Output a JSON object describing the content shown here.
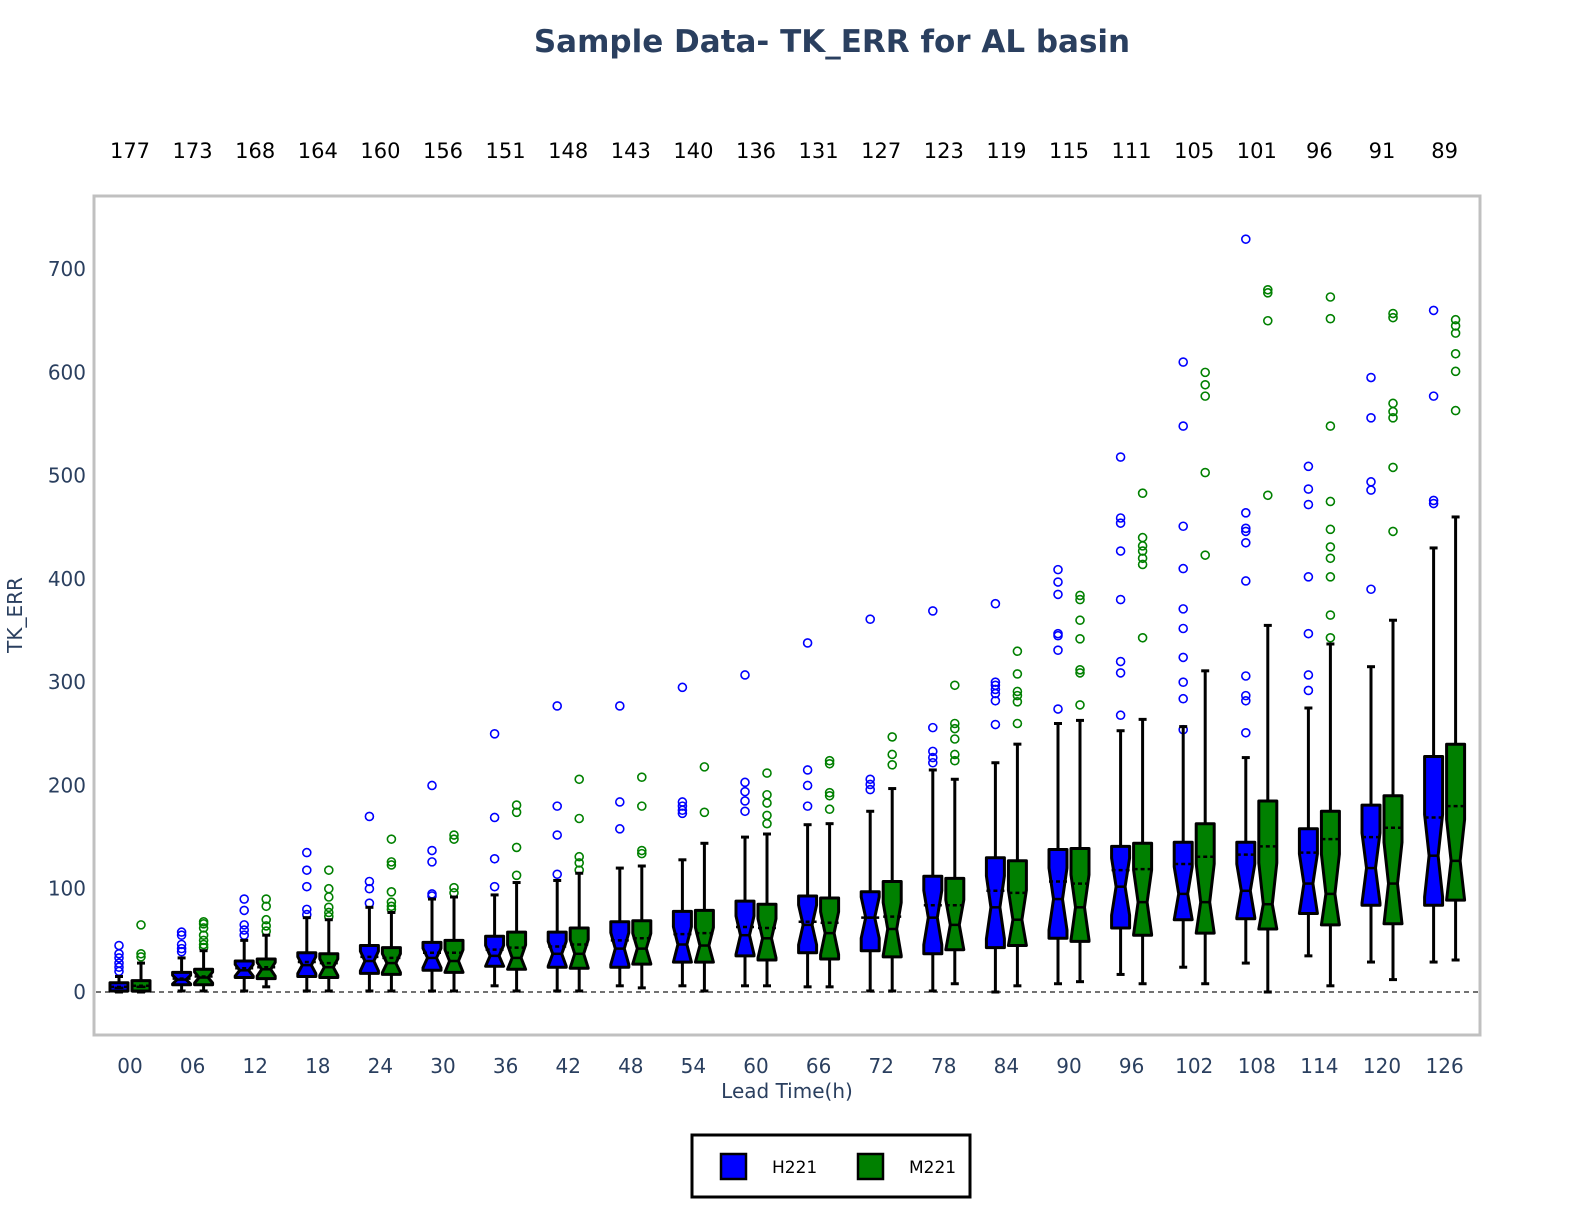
{
  "chart_data": {
    "type": "box",
    "title": "Sample Data- TK_ERR for AL basin",
    "xlabel": "Lead Time(h)",
    "ylabel": "TK_ERR",
    "ylim": [
      -40,
      750
    ],
    "yticks": [
      0,
      100,
      200,
      300,
      400,
      500,
      600,
      700
    ],
    "categories": [
      "00",
      "06",
      "12",
      "18",
      "24",
      "30",
      "36",
      "42",
      "48",
      "54",
      "60",
      "66",
      "72",
      "78",
      "84",
      "90",
      "96",
      "102",
      "108",
      "114",
      "120",
      "126"
    ],
    "counts": [
      "177",
      "173",
      "168",
      "164",
      "160",
      "156",
      "151",
      "148",
      "143",
      "140",
      "136",
      "131",
      "127",
      "123",
      "119",
      "115",
      "111",
      "105",
      "101",
      "96",
      "91",
      "89"
    ],
    "legend": {
      "position": "bottom-center",
      "items": [
        "H221",
        "M221"
      ]
    },
    "grid": false,
    "series": [
      {
        "name": "H221",
        "color": "#0000ff",
        "boxes": [
          {
            "min": 0,
            "q1": 1,
            "median": 4,
            "q3": 9,
            "max": 15,
            "mean": 5,
            "outliers": [
              20,
              24,
              28,
              33,
              37,
              45
            ]
          },
          {
            "min": 1,
            "q1": 7,
            "median": 12,
            "q3": 19,
            "max": 33,
            "mean": 13,
            "outliers": [
              39,
              42,
              46,
              55,
              58
            ]
          },
          {
            "min": 1,
            "q1": 14,
            "median": 21,
            "q3": 30,
            "max": 50,
            "mean": 23,
            "outliers": [
              55,
              60,
              65,
              79,
              90
            ]
          },
          {
            "min": 1,
            "q1": 15,
            "median": 26,
            "q3": 38,
            "max": 72,
            "mean": 29,
            "outliers": [
              75,
              80,
              102,
              118,
              135
            ]
          },
          {
            "min": 1,
            "q1": 18,
            "median": 30,
            "q3": 45,
            "max": 82,
            "mean": 34,
            "outliers": [
              86,
              100,
              107,
              170
            ]
          },
          {
            "min": 1,
            "q1": 21,
            "median": 33,
            "q3": 48,
            "max": 90,
            "mean": 38,
            "outliers": [
              93,
              95,
              126,
              137,
              200
            ]
          },
          {
            "min": 6,
            "q1": 25,
            "median": 35,
            "q3": 54,
            "max": 94,
            "mean": 41,
            "outliers": [
              102,
              129,
              169,
              250
            ]
          },
          {
            "min": 1,
            "q1": 24,
            "median": 37,
            "q3": 58,
            "max": 108,
            "mean": 44,
            "outliers": [
              114,
              152,
              180,
              277
            ]
          },
          {
            "min": 6,
            "q1": 24,
            "median": 42,
            "q3": 68,
            "max": 120,
            "mean": 50,
            "outliers": [
              158,
              184,
              277
            ]
          },
          {
            "min": 6,
            "q1": 29,
            "median": 46,
            "q3": 78,
            "max": 128,
            "mean": 56,
            "outliers": [
              173,
              176,
              180,
              184,
              295
            ]
          },
          {
            "min": 6,
            "q1": 35,
            "median": 55,
            "q3": 88,
            "max": 150,
            "mean": 63,
            "outliers": [
              175,
              185,
              194,
              203,
              307
            ]
          },
          {
            "min": 5,
            "q1": 38,
            "median": 65,
            "q3": 93,
            "max": 162,
            "mean": 68,
            "outliers": [
              180,
              200,
              215,
              338
            ]
          },
          {
            "min": 1,
            "q1": 40,
            "median": 72,
            "q3": 97,
            "max": 175,
            "mean": 72,
            "outliers": [
              196,
              201,
              206,
              361
            ]
          },
          {
            "min": 1,
            "q1": 37,
            "median": 72,
            "q3": 112,
            "max": 215,
            "mean": 84,
            "outliers": [
              222,
              227,
              233,
              256,
              369
            ]
          },
          {
            "min": 0,
            "q1": 43,
            "median": 82,
            "q3": 130,
            "max": 222,
            "mean": 98,
            "outliers": [
              259,
              282,
              289,
              293,
              297,
              300,
              376
            ]
          },
          {
            "min": 8,
            "q1": 52,
            "median": 90,
            "q3": 138,
            "max": 260,
            "mean": 107,
            "outliers": [
              274,
              331,
              345,
              347,
              385,
              397,
              409
            ]
          },
          {
            "min": 17,
            "q1": 62,
            "median": 102,
            "q3": 141,
            "max": 253,
            "mean": 118,
            "outliers": [
              268,
              309,
              320,
              380,
              427,
              454,
              459,
              518
            ]
          },
          {
            "min": 24,
            "q1": 70,
            "median": 95,
            "q3": 145,
            "max": 257,
            "mean": 124,
            "outliers": [
              254,
              284,
              300,
              324,
              352,
              371,
              410,
              451,
              548,
              610
            ]
          },
          {
            "min": 28,
            "q1": 71,
            "median": 98,
            "q3": 145,
            "max": 227,
            "mean": 133,
            "outliers": [
              251,
              282,
              287,
              306,
              398,
              435,
              446,
              449,
              464,
              729
            ]
          },
          {
            "min": 35,
            "q1": 76,
            "median": 105,
            "q3": 158,
            "max": 275,
            "mean": 135,
            "outliers": [
              292,
              307,
              347,
              402,
              472,
              487,
              509
            ]
          },
          {
            "min": 29,
            "q1": 84,
            "median": 120,
            "q3": 181,
            "max": 315,
            "mean": 150,
            "outliers": [
              390,
              486,
              494,
              556,
              595
            ]
          },
          {
            "min": 29,
            "q1": 84,
            "median": 132,
            "q3": 228,
            "max": 430,
            "mean": 169,
            "outliers": [
              473,
              476,
              577,
              660
            ]
          }
        ]
      },
      {
        "name": "M221",
        "color": "#008000",
        "boxes": [
          {
            "min": 0,
            "q1": 1,
            "median": 5,
            "q3": 11,
            "max": 28,
            "mean": 6,
            "outliers": [
              34,
              37,
              65
            ]
          },
          {
            "min": 1,
            "q1": 7,
            "median": 14,
            "q3": 22,
            "max": 40,
            "mean": 15,
            "outliers": [
              43,
              46,
              50,
              55,
              62,
              66,
              68
            ]
          },
          {
            "min": 5,
            "q1": 13,
            "median": 22,
            "q3": 32,
            "max": 55,
            "mean": 24,
            "outliers": [
              59,
              64,
              70,
              83,
              90
            ]
          },
          {
            "min": 1,
            "q1": 14,
            "median": 24,
            "q3": 37,
            "max": 70,
            "mean": 28,
            "outliers": [
              73,
              77,
              82,
              92,
              100,
              118
            ]
          },
          {
            "min": 1,
            "q1": 17,
            "median": 28,
            "q3": 43,
            "max": 77,
            "mean": 33,
            "outliers": [
              80,
              83,
              87,
              97,
              123,
              126,
              148
            ]
          },
          {
            "min": 1,
            "q1": 19,
            "median": 30,
            "q3": 50,
            "max": 92,
            "mean": 38,
            "outliers": [
              96,
              101,
              148,
              152
            ]
          },
          {
            "min": 1,
            "q1": 22,
            "median": 33,
            "q3": 58,
            "max": 106,
            "mean": 43,
            "outliers": [
              113,
              140,
              174,
              181
            ]
          },
          {
            "min": 1,
            "q1": 23,
            "median": 37,
            "q3": 62,
            "max": 115,
            "mean": 46,
            "outliers": [
              118,
              125,
              131,
              168,
              206
            ]
          },
          {
            "min": 4,
            "q1": 27,
            "median": 42,
            "q3": 69,
            "max": 122,
            "mean": 52,
            "outliers": [
              134,
              137,
              180,
              208
            ]
          },
          {
            "min": 1,
            "q1": 29,
            "median": 45,
            "q3": 79,
            "max": 144,
            "mean": 57,
            "outliers": [
              174,
              218
            ]
          },
          {
            "min": 6,
            "q1": 31,
            "median": 52,
            "q3": 85,
            "max": 153,
            "mean": 62,
            "outliers": [
              163,
              171,
              183,
              191,
              212
            ]
          },
          {
            "min": 5,
            "q1": 32,
            "median": 57,
            "q3": 91,
            "max": 163,
            "mean": 67,
            "outliers": [
              177,
              190,
              193,
              221,
              224
            ]
          },
          {
            "min": 1,
            "q1": 34,
            "median": 61,
            "q3": 107,
            "max": 197,
            "mean": 73,
            "outliers": [
              220,
              230,
              247
            ]
          },
          {
            "min": 8,
            "q1": 41,
            "median": 65,
            "q3": 110,
            "max": 206,
            "mean": 84,
            "outliers": [
              224,
              230,
              245,
              255,
              260,
              297
            ]
          },
          {
            "min": 6,
            "q1": 45,
            "median": 70,
            "q3": 127,
            "max": 240,
            "mean": 96,
            "outliers": [
              260,
              281,
              287,
              291,
              308,
              330
            ]
          },
          {
            "min": 10,
            "q1": 49,
            "median": 82,
            "q3": 139,
            "max": 263,
            "mean": 105,
            "outliers": [
              278,
              309,
              312,
              342,
              360,
              380,
              384
            ]
          },
          {
            "min": 8,
            "q1": 55,
            "median": 87,
            "q3": 144,
            "max": 264,
            "mean": 119,
            "outliers": [
              343,
              414,
              420,
              427,
              432,
              440,
              483
            ]
          },
          {
            "min": 8,
            "q1": 57,
            "median": 87,
            "q3": 163,
            "max": 311,
            "mean": 131,
            "outliers": [
              423,
              503,
              577,
              588,
              600
            ]
          },
          {
            "min": 0,
            "q1": 61,
            "median": 85,
            "q3": 185,
            "max": 355,
            "mean": 141,
            "outliers": [
              481,
              650,
              677,
              680
            ]
          },
          {
            "min": 6,
            "q1": 65,
            "median": 95,
            "q3": 175,
            "max": 337,
            "mean": 148,
            "outliers": [
              343,
              365,
              402,
              420,
              431,
              448,
              475,
              548,
              652,
              673
            ]
          },
          {
            "min": 12,
            "q1": 66,
            "median": 105,
            "q3": 190,
            "max": 360,
            "mean": 159,
            "outliers": [
              446,
              508,
              556,
              562,
              570,
              653,
              657
            ]
          },
          {
            "min": 31,
            "q1": 89,
            "median": 127,
            "q3": 240,
            "max": 460,
            "mean": 180,
            "outliers": [
              563,
              601,
              618,
              638,
              645,
              651
            ]
          }
        ]
      }
    ]
  }
}
